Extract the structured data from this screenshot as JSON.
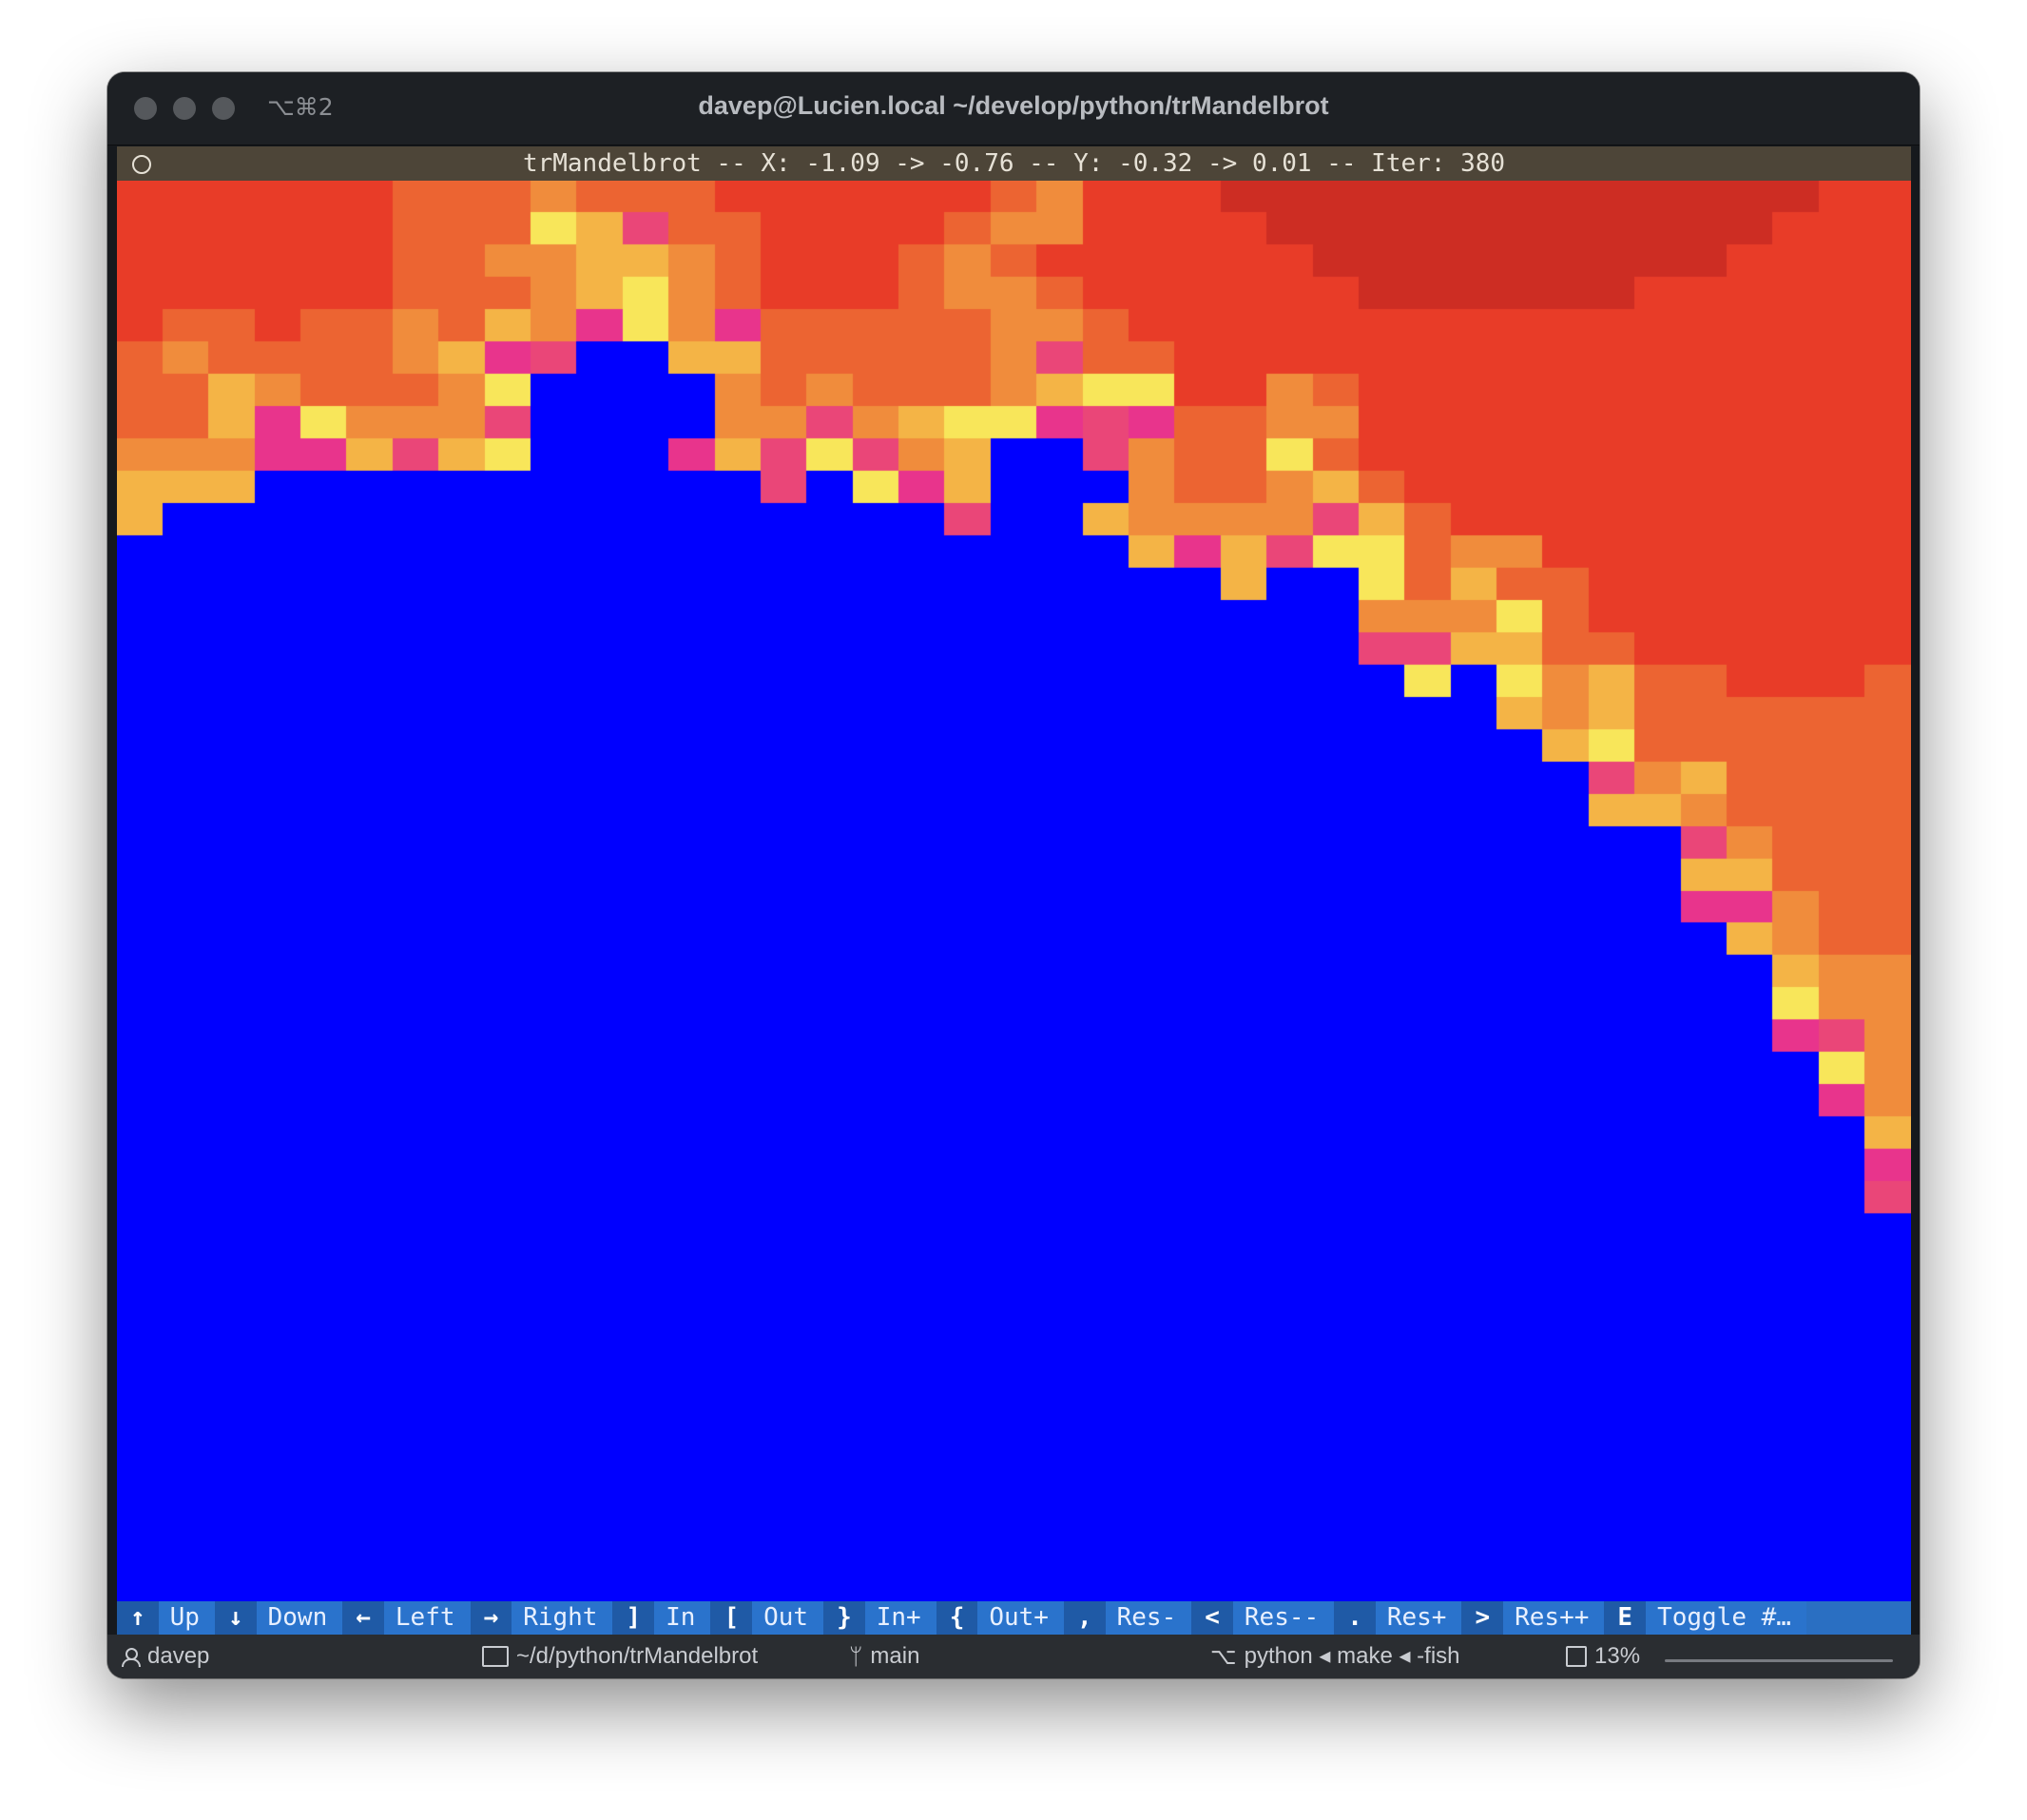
{
  "window": {
    "title": "davep@Lucien.local ~/develop/python/trMandelbrot",
    "shortcut": "⌥⌘2"
  },
  "app": {
    "header": "trMandelbrot -- X: -1.09 -> -0.76 -- Y: -0.32 -> 0.01 -- Iter: 380"
  },
  "footer": {
    "bindings": [
      {
        "key": "↑",
        "desc": "Up"
      },
      {
        "key": "↓",
        "desc": "Down"
      },
      {
        "key": "←",
        "desc": "Left"
      },
      {
        "key": "→",
        "desc": "Right"
      },
      {
        "key": "]",
        "desc": "In"
      },
      {
        "key": "[",
        "desc": "Out"
      },
      {
        "key": "}",
        "desc": "In+"
      },
      {
        "key": "{",
        "desc": "Out+"
      },
      {
        "key": ",",
        "desc": "Res-"
      },
      {
        "key": "<",
        "desc": "Res--"
      },
      {
        "key": ".",
        "desc": "Res+"
      },
      {
        "key": ">",
        "desc": "Res++"
      },
      {
        "key": "E",
        "desc": "Toggle #…"
      }
    ]
  },
  "statusbar": {
    "user": "davep",
    "path": "~/d/python/trMandelbrot",
    "branch": "main",
    "process": "python ◂ make ◂ -fish",
    "cpu": "13%"
  },
  "colors": {
    "set_interior": "#0000ff",
    "header_bg": "#4d4538",
    "footer_key_bg": "#1f5aa6",
    "footer_desc_bg": "#2a73cc"
  },
  "icons": [
    "user-icon",
    "folder-icon",
    "git-branch-icon",
    "process-tree-icon",
    "cpu-icon"
  ]
}
